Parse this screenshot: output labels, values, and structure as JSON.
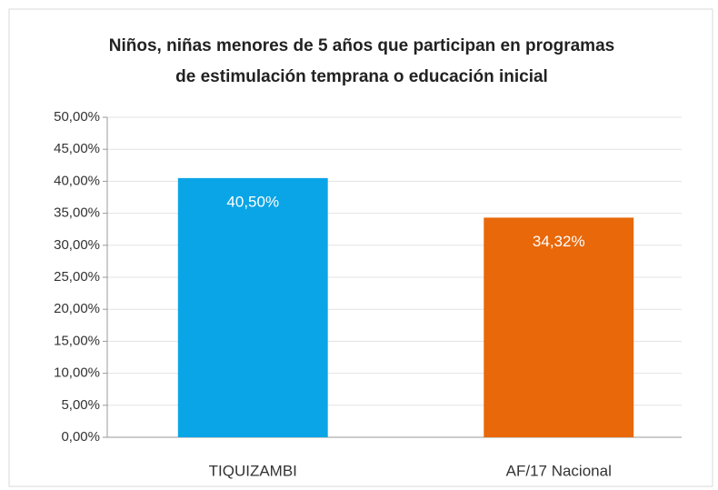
{
  "chart_data": {
    "type": "bar",
    "title": [
      "Niños, niñas menores de 5 años que participan en programas",
      "de estimulación temprana o educación inicial"
    ],
    "categories": [
      "TIQUIZAMBI",
      "AF/17 Nacional"
    ],
    "values": [
      40.5,
      34.32
    ],
    "value_labels": [
      "40,50%",
      "34,32%"
    ],
    "colors": [
      "#0aa5e6",
      "#e8680a"
    ],
    "ylim": [
      0,
      50
    ],
    "yticks": [
      {
        "value": 0,
        "label": "0,00%"
      },
      {
        "value": 5,
        "label": "5,00%"
      },
      {
        "value": 10,
        "label": "10,00%"
      },
      {
        "value": 15,
        "label": "15,00%"
      },
      {
        "value": 20,
        "label": "20,00%"
      },
      {
        "value": 25,
        "label": "25,00%"
      },
      {
        "value": 30,
        "label": "30,00%"
      },
      {
        "value": 35,
        "label": "35,00%"
      },
      {
        "value": 40,
        "label": "40,00%"
      },
      {
        "value": 45,
        "label": "45,00%"
      },
      {
        "value": 50,
        "label": "50,00%"
      }
    ],
    "grid": true
  }
}
